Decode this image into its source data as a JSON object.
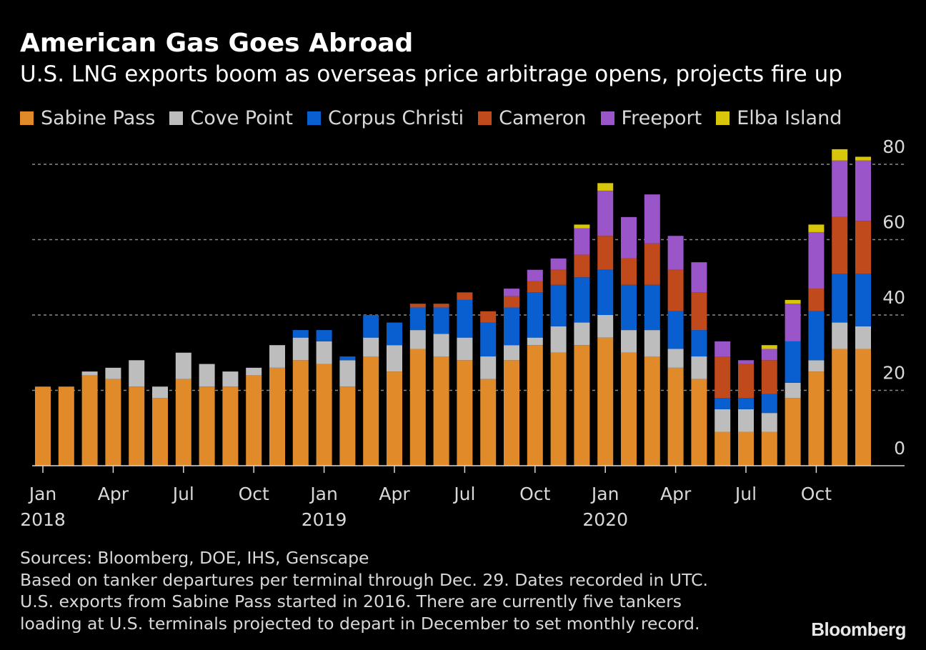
{
  "header": {
    "title": "American Gas Goes Abroad",
    "subtitle": "U.S. LNG exports boom as overseas price arbitrage opens, projects fire up"
  },
  "notes": {
    "sources": "Sources: Bloomberg, DOE, IHS, Genscape",
    "line1": "Based on tanker departures per terminal through Dec. 29. Dates recorded in UTC.",
    "line2": "U.S. exports from Sabine Pass started in 2016. There are currently five tankers",
    "line3": "loading at U.S. terminals projected to depart in December to set monthly record."
  },
  "brand": "Bloomberg",
  "chart_data": {
    "type": "bar",
    "stacked": true,
    "title": "American Gas Goes Abroad",
    "subtitle": "U.S. LNG exports boom as overseas price arbitrage opens, projects fire up",
    "xlabel": "",
    "ylabel": "",
    "ylim": [
      0,
      80
    ],
    "yticks": [
      0,
      20,
      40,
      60,
      80
    ],
    "y_axis_side": "right",
    "grid": true,
    "legend_position": "top",
    "x_tick_labels": [
      {
        "month": "Jan",
        "year": "2018"
      },
      {
        "month": "Apr",
        "year": ""
      },
      {
        "month": "Jul",
        "year": ""
      },
      {
        "month": "Oct",
        "year": ""
      },
      {
        "month": "Jan",
        "year": "2019"
      },
      {
        "month": "Apr",
        "year": ""
      },
      {
        "month": "Jul",
        "year": ""
      },
      {
        "month": "Oct",
        "year": ""
      },
      {
        "month": "Jan",
        "year": "2020"
      },
      {
        "month": "Apr",
        "year": ""
      },
      {
        "month": "Jul",
        "year": ""
      },
      {
        "month": "Oct",
        "year": ""
      }
    ],
    "categories": [
      "2018-01",
      "2018-02",
      "2018-03",
      "2018-04",
      "2018-05",
      "2018-06",
      "2018-07",
      "2018-08",
      "2018-09",
      "2018-10",
      "2018-11",
      "2018-12",
      "2019-01",
      "2019-02",
      "2019-03",
      "2019-04",
      "2019-05",
      "2019-06",
      "2019-07",
      "2019-08",
      "2019-09",
      "2019-10",
      "2019-11",
      "2019-12",
      "2020-01",
      "2020-02",
      "2020-03",
      "2020-04",
      "2020-05",
      "2020-06",
      "2020-07",
      "2020-08",
      "2020-09",
      "2020-10",
      "2020-11",
      "2020-12"
    ],
    "series": [
      {
        "name": "Sabine Pass",
        "color": "#e08a2a",
        "values": [
          21,
          21,
          24,
          23,
          21,
          18,
          23,
          21,
          21,
          24,
          26,
          28,
          27,
          21,
          29,
          25,
          31,
          29,
          28,
          23,
          28,
          32,
          30,
          32,
          34,
          30,
          29,
          26,
          23,
          9,
          9,
          9,
          18,
          25,
          31,
          31
        ]
      },
      {
        "name": "Cove Point",
        "color": "#bdbdbd",
        "values": [
          0,
          0,
          1,
          3,
          7,
          3,
          7,
          6,
          4,
          2,
          6,
          6,
          6,
          7,
          5,
          7,
          5,
          6,
          6,
          6,
          4,
          2,
          7,
          6,
          6,
          6,
          7,
          5,
          6,
          6,
          6,
          5,
          4,
          3,
          7,
          6
        ]
      },
      {
        "name": "Corpus Christi",
        "color": "#0a5fd0",
        "values": [
          0,
          0,
          0,
          0,
          0,
          0,
          0,
          0,
          0,
          0,
          0,
          2,
          3,
          1,
          6,
          6,
          6,
          7,
          10,
          9,
          10,
          12,
          11,
          12,
          12,
          12,
          12,
          10,
          7,
          3,
          3,
          5,
          11,
          13,
          13,
          14
        ]
      },
      {
        "name": "Cameron",
        "color": "#c04a1c",
        "values": [
          0,
          0,
          0,
          0,
          0,
          0,
          0,
          0,
          0,
          0,
          0,
          0,
          0,
          0,
          0,
          0,
          1,
          1,
          2,
          3,
          3,
          3,
          4,
          6,
          9,
          7,
          11,
          11,
          10,
          11,
          9,
          9,
          0,
          6,
          15,
          14
        ]
      },
      {
        "name": "Freeport",
        "color": "#9a55c8",
        "values": [
          0,
          0,
          0,
          0,
          0,
          0,
          0,
          0,
          0,
          0,
          0,
          0,
          0,
          0,
          0,
          0,
          0,
          0,
          0,
          0,
          2,
          3,
          3,
          7,
          12,
          11,
          13,
          9,
          8,
          4,
          1,
          3,
          10,
          15,
          15,
          16
        ]
      },
      {
        "name": "Elba Island",
        "color": "#d8c60a",
        "values": [
          0,
          0,
          0,
          0,
          0,
          0,
          0,
          0,
          0,
          0,
          0,
          0,
          0,
          0,
          0,
          0,
          0,
          0,
          0,
          0,
          0,
          0,
          0,
          1,
          2,
          0,
          0,
          0,
          0,
          0,
          0,
          1,
          1,
          2,
          3,
          1
        ]
      }
    ]
  },
  "style": {
    "background": "#000000",
    "grid_color": "#8a8a8a",
    "axis_color": "#d8d8d8"
  }
}
